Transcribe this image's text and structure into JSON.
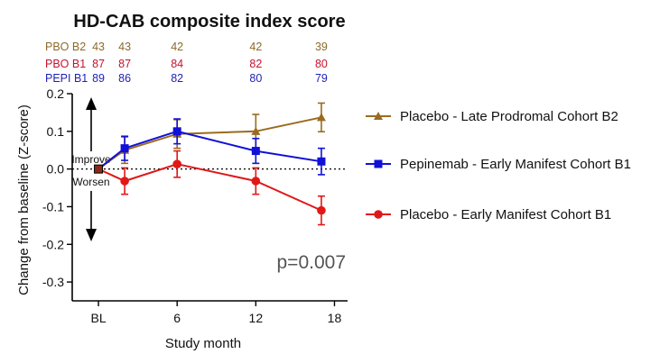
{
  "chart_data": {
    "type": "line",
    "title": "HD-CAB composite index score",
    "xlabel": "Study month",
    "ylabel": "Change from baseline (Z-score)",
    "x_tick_labels": [
      "BL",
      "6",
      "12",
      "18"
    ],
    "x_ticks": [
      0,
      6,
      12,
      18
    ],
    "y_ticks": [
      -0.3,
      -0.2,
      -0.1,
      0.0,
      0.1,
      0.2
    ],
    "y_tick_labels": [
      "-0.3",
      "-0.2",
      "-0.1",
      "0.0",
      "0.1",
      "0.2"
    ],
    "ylim": [
      -0.35,
      0.2
    ],
    "xlim": [
      -2,
      19
    ],
    "reference_line": 0,
    "improve_label": "Improve",
    "worsen_label": "Worsen",
    "p_value": "p=0.007",
    "legend_position": "right",
    "n_table": {
      "columns_x": [
        0,
        2,
        6,
        12,
        17
      ],
      "rows": [
        {
          "label": "PBO B2",
          "color": "#8B6A2B",
          "values": [
            "43",
            "43",
            "42",
            "42",
            "39"
          ]
        },
        {
          "label": "PBO B1",
          "color": "#C8102E",
          "values": [
            "87",
            "87",
            "84",
            "82",
            "80"
          ]
        },
        {
          "label": "PEPI B1",
          "color": "#1F1FB4",
          "values": [
            "89",
            "86",
            "82",
            "80",
            "79"
          ]
        }
      ]
    },
    "series": [
      {
        "name": "Placebo - Late Prodromal Cohort B2",
        "color": "#9A6B1F",
        "marker": "triangle",
        "points": [
          {
            "x": 0,
            "y": 0.0,
            "err": 0.0
          },
          {
            "x": 2,
            "y": 0.05,
            "err": 0.035
          },
          {
            "x": 6,
            "y": 0.093,
            "err": 0.038
          },
          {
            "x": 12,
            "y": 0.1,
            "err": 0.045
          },
          {
            "x": 17,
            "y": 0.137,
            "err": 0.038
          }
        ]
      },
      {
        "name": "Pepinemab - Early Manifest Cohort B1",
        "color": "#1010D8",
        "marker": "square",
        "points": [
          {
            "x": 0,
            "y": 0.0,
            "err": 0.0
          },
          {
            "x": 2,
            "y": 0.055,
            "err": 0.032
          },
          {
            "x": 6,
            "y": 0.1,
            "err": 0.033
          },
          {
            "x": 12,
            "y": 0.048,
            "err": 0.033
          },
          {
            "x": 17,
            "y": 0.02,
            "err": 0.035
          }
        ]
      },
      {
        "name": "Placebo - Early Manifest Cohort B1",
        "color": "#E01818",
        "marker": "circle",
        "points": [
          {
            "x": 0,
            "y": 0.0,
            "err": 0.0
          },
          {
            "x": 2,
            "y": -0.032,
            "err": 0.035
          },
          {
            "x": 6,
            "y": 0.013,
            "err": 0.035
          },
          {
            "x": 12,
            "y": -0.032,
            "err": 0.035
          },
          {
            "x": 17,
            "y": -0.11,
            "err": 0.038
          }
        ]
      }
    ]
  }
}
